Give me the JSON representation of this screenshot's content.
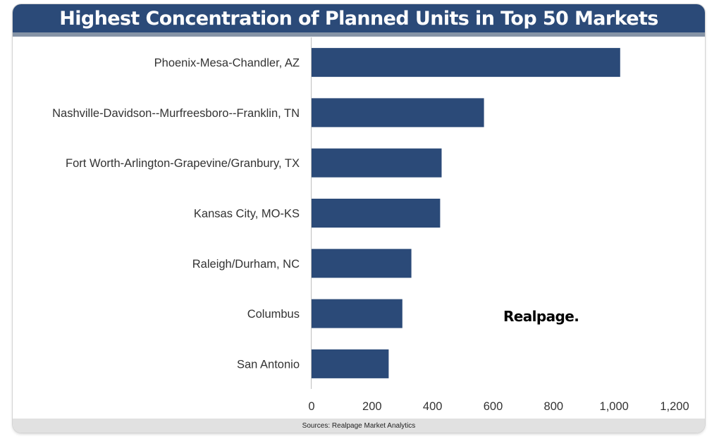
{
  "header": {
    "title": "Highest Concentration of Planned Units in Top 50 Markets"
  },
  "footer": {
    "source": "Sources: Realpage Market Analytics"
  },
  "branding": {
    "logo_text": "Realpage."
  },
  "colors": {
    "bar": "#2b4a78",
    "header": "#2b4a78",
    "axis": "#bfbfbf",
    "footer": "#e1e1e1"
  },
  "chart_data": {
    "type": "bar",
    "orientation": "horizontal",
    "title": "Highest Concentration of Planned Units in Top 50 Markets",
    "xlabel": "",
    "ylabel": "",
    "categories": [
      "Phoenix-Mesa-Chandler, AZ",
      "Nashville-Davidson--Murfreesboro--Franklin, TN",
      "Fort Worth-Arlington-Grapevine/Granbury, TX",
      "Kansas City, MO-KS",
      "Raleigh/Durham, NC",
      "Columbus",
      "San Antonio"
    ],
    "values": [
      1020,
      570,
      430,
      425,
      330,
      300,
      255
    ],
    "xlim": [
      0,
      1200
    ],
    "xticks": [
      0,
      200,
      400,
      600,
      800,
      1000,
      1200
    ],
    "xtick_labels": [
      "0",
      "200",
      "400",
      "600",
      "800",
      "1,000",
      "1,200"
    ],
    "grid": false,
    "legend": "none"
  }
}
